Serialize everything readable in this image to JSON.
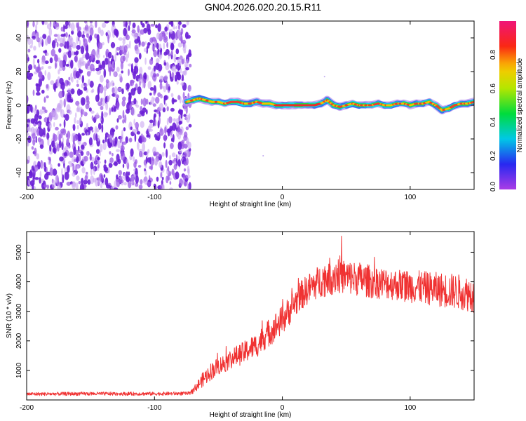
{
  "page": {
    "title": "GN04.2026.020.20.15.R11"
  },
  "chart_data": [
    {
      "type": "heatmap",
      "name": "spectrogram",
      "xlabel": "Height of straight line (km)",
      "ylabel": "Frequency (Hz)",
      "xlim": [
        -200,
        150
      ],
      "ylim": [
        -50,
        50
      ],
      "xticks": [
        -200,
        -100,
        0,
        100
      ],
      "xtick_labels": [
        "-200",
        "-100",
        "0",
        "100"
      ],
      "yticks": [
        -40,
        -20,
        0,
        20,
        40
      ],
      "ytick_labels": [
        "-40",
        "-20",
        "0",
        "20",
        "40"
      ],
      "noise_region_x": [
        -200,
        -72
      ],
      "ridge": {
        "x": [
          -75,
          -70,
          -65,
          -60,
          -55,
          -50,
          -45,
          -40,
          -35,
          -30,
          -25,
          -20,
          -15,
          -10,
          -5,
          0,
          5,
          10,
          15,
          20,
          25,
          30,
          35,
          40,
          45,
          50,
          55,
          60,
          65,
          70,
          75,
          80,
          85,
          90,
          95,
          100,
          105,
          110,
          115,
          120,
          125,
          130,
          135,
          140,
          145,
          150
        ],
        "y": [
          2,
          3,
          4,
          3,
          2,
          2,
          1,
          2,
          2,
          1,
          1,
          2,
          1,
          1,
          0,
          0,
          0,
          0,
          0,
          0,
          0,
          1,
          3,
          0,
          -1,
          0,
          1,
          0,
          0,
          0,
          1,
          0,
          0,
          1,
          1,
          0,
          1,
          1,
          2,
          0,
          -3,
          -2,
          0,
          1,
          1,
          2
        ]
      },
      "colorbar": {
        "label": "Normalized spectral amplitude",
        "range": [
          0,
          1
        ],
        "ticks": [
          0.0,
          0.2,
          0.4,
          0.6,
          0.8
        ],
        "tick_labels": [
          "0.0",
          "0.2",
          "0.4",
          "0.6",
          "0.8"
        ]
      }
    },
    {
      "type": "line",
      "name": "snr",
      "xlabel": "Height of straight line (km)",
      "ylabel": "SNR (10 * v/v)",
      "xlim": [
        -200,
        150
      ],
      "ylim": [
        0,
        5700
      ],
      "xticks": [
        -200,
        -100,
        0,
        100
      ],
      "xtick_labels": [
        "-200",
        "-100",
        "0",
        "100"
      ],
      "yticks": [
        1000,
        2000,
        3000,
        4000,
        5000
      ],
      "ytick_labels": [
        "1000",
        "2000",
        "3000",
        "4000",
        "5000"
      ],
      "color": "#f03232",
      "envelope": {
        "x": [
          -200,
          -150,
          -100,
          -72,
          -62,
          -55,
          -50,
          -45,
          -40,
          -35,
          -30,
          -25,
          -20,
          -15,
          -10,
          -5,
          0,
          5,
          10,
          15,
          20,
          25,
          30,
          35,
          40,
          45,
          50,
          60,
          70,
          80,
          90,
          100,
          110,
          120,
          130,
          140,
          150
        ],
        "mean": [
          200,
          210,
          210,
          220,
          700,
          1000,
          1150,
          1250,
          1400,
          1500,
          1600,
          1750,
          1850,
          2100,
          2300,
          2500,
          2700,
          3000,
          3300,
          3550,
          3750,
          3900,
          4050,
          4150,
          4250,
          4250,
          4150,
          4100,
          4000,
          3950,
          3900,
          3850,
          3800,
          3750,
          3700,
          3650,
          3550
        ],
        "spread": [
          60,
          60,
          60,
          60,
          250,
          300,
          300,
          320,
          340,
          360,
          380,
          400,
          420,
          450,
          480,
          500,
          500,
          500,
          500,
          500,
          520,
          540,
          560,
          650,
          700,
          650,
          600,
          580,
          560,
          540,
          540,
          560,
          560,
          580,
          600,
          600,
          600
        ]
      }
    }
  ]
}
